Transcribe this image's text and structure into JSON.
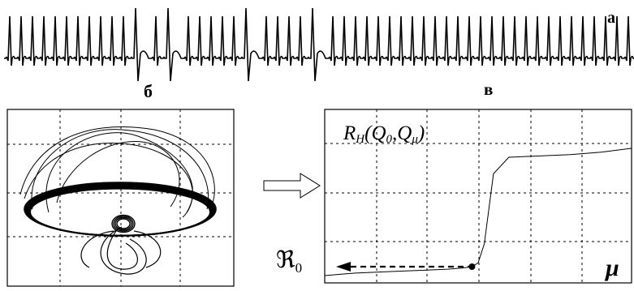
{
  "labels": {
    "a": "а",
    "b": "б",
    "v": "в",
    "r0_symbol": "ℜ",
    "r0_sub": "0",
    "mu": "μ",
    "formula_R": "R",
    "formula_H": "H",
    "formula_Q0": "Q",
    "formula_0": "0",
    "formula_Qmu": "Q",
    "formula_mu": "μ"
  },
  "chart_data": {
    "type": "line",
    "series": [
      {
        "x": [
          0,
          0.05,
          0.1,
          0.2,
          0.3,
          0.4,
          0.45,
          0.48,
          0.5,
          0.52,
          0.55,
          0.6,
          0.7,
          0.8,
          0.9,
          1.0
        ],
        "values": [
          0.0,
          0.01,
          0.02,
          0.03,
          0.04,
          0.05,
          0.06,
          0.07,
          0.1,
          0.25,
          0.8,
          0.93,
          0.94,
          0.95,
          0.97,
          1.0
        ]
      }
    ],
    "grid": true,
    "marker": {
      "x": 0.48,
      "y": 0.07
    }
  }
}
